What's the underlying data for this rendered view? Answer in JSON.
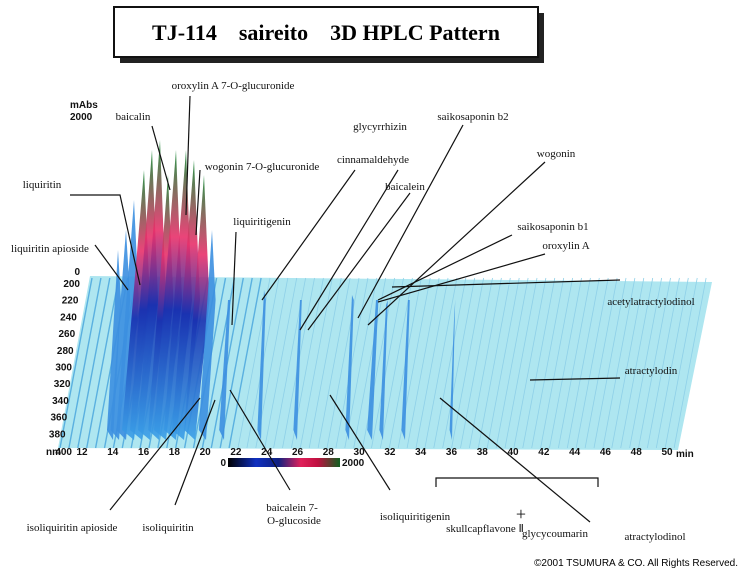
{
  "title": "TJ-114　saireito　3D HPLC Pattern",
  "intensity_axis": {
    "unit": "mAbs",
    "max": 2000,
    "zero": 0
  },
  "wavelength_axis": {
    "unit": "nm",
    "ticks": [
      200,
      220,
      240,
      260,
      280,
      300,
      320,
      340,
      360,
      380,
      400
    ]
  },
  "time_axis": {
    "unit": "min",
    "ticks": [
      12,
      14,
      16,
      18,
      20,
      22,
      24,
      26,
      28,
      30,
      32,
      34,
      36,
      38,
      40,
      42,
      44,
      46,
      48,
      50
    ]
  },
  "color_scale": {
    "min": 0,
    "max": 2000
  },
  "compounds": [
    "baicalin",
    "oroxylin A 7-O-glucuronide",
    "wogonin 7-O-glucuronide",
    "liquiritin",
    "liquiritin apioside",
    "glycyrrhizin",
    "cinnamaldehyde",
    "saikosaponin b2",
    "wogonin",
    "baicalein",
    "liquiritigenin",
    "saikosaponin b1",
    "oroxylin A",
    "acetylatractylodinol",
    "atractylodin",
    "atractylodinol",
    "isoliquiritin apioside",
    "isoliquiritin",
    "baicalein 7-",
    "O-glucoside",
    "isoliquiritigenin",
    "skullcapflavone Ⅱ",
    "+",
    "glycycoumarin"
  ],
  "copyright": "©2001 TSUMURA & CO. All Rights Reserved."
}
